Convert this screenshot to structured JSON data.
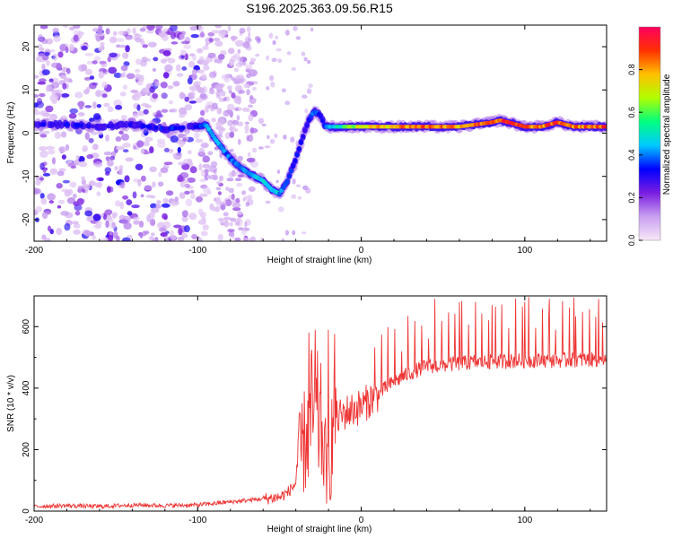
{
  "figure_title": "S196.2025.363.09.56.R15",
  "chart_data": [
    {
      "type": "heatmap",
      "title": "",
      "xlabel": "Height of straight line (km)",
      "ylabel": "Frequency (Hz)",
      "xlim": [
        -200,
        150
      ],
      "ylim": [
        -25,
        25
      ],
      "x_ticks": [
        -200,
        -100,
        0,
        100
      ],
      "y_ticks": [
        -20,
        -10,
        0,
        10,
        20
      ],
      "colorbar": {
        "label": "Normalized spectral amplitude",
        "range": [
          0.0,
          1.0
        ],
        "ticks": [
          0.0,
          0.2,
          0.4,
          0.6,
          0.8
        ],
        "tick_labels": [
          "0.0",
          "0.2",
          "0.4",
          "0.6",
          "0.8"
        ],
        "colormap": [
          "#f7e7f7",
          "#c9a0f0",
          "#7a1de0",
          "#0000ff",
          "#00c8ff",
          "#00ff80",
          "#b0ff00",
          "#ffc000",
          "#ff3000",
          "#ff0060"
        ]
      },
      "ridge_track": {
        "x": [
          -200,
          -180,
          -160,
          -140,
          -120,
          -100,
          -95,
          -90,
          -80,
          -70,
          -60,
          -55,
          -50,
          -45,
          -40,
          -35,
          -32,
          -30,
          -28,
          -25,
          -22,
          -20,
          0,
          20,
          40,
          60,
          70,
          80,
          85,
          90,
          100,
          110,
          120,
          130,
          140,
          150
        ],
        "y": [
          2,
          2,
          1.5,
          2,
          1,
          1.5,
          2,
          -1,
          -6,
          -9,
          -11,
          -13,
          -14,
          -11,
          -6,
          0,
          3,
          4.5,
          5,
          4,
          1.5,
          1.5,
          1.5,
          1.5,
          1.5,
          1.5,
          2,
          2.5,
          3,
          2.5,
          1.5,
          1.5,
          2.5,
          1.5,
          1.5,
          1.5
        ],
        "amplitude": [
          0.3,
          0.35,
          0.3,
          0.3,
          0.35,
          0.35,
          0.45,
          0.45,
          0.4,
          0.45,
          0.5,
          0.5,
          0.45,
          0.4,
          0.35,
          0.3,
          0.35,
          0.4,
          0.4,
          0.35,
          0.4,
          0.45,
          0.75,
          0.85,
          0.9,
          0.85,
          0.9,
          0.95,
          0.9,
          0.95,
          0.9,
          0.85,
          0.95,
          0.85,
          0.9,
          0.9
        ]
      },
      "noise_region_x": [
        -200,
        -100
      ]
    },
    {
      "type": "line",
      "title": "",
      "xlabel": "Height of straight line (km)",
      "ylabel": "SNR (10 * v/v)",
      "xlim": [
        -200,
        150
      ],
      "ylim": [
        0,
        700
      ],
      "x_ticks": [
        -200,
        -100,
        0,
        100
      ],
      "y_ticks": [
        0,
        200,
        400,
        600
      ],
      "series": [
        {
          "name": "SNR",
          "color": "#ee3333",
          "x": [
            -200,
            -180,
            -160,
            -140,
            -120,
            -100,
            -90,
            -80,
            -70,
            -60,
            -50,
            -45,
            -40,
            -35,
            -30,
            -25,
            -20,
            -15,
            -10,
            -5,
            0,
            5,
            10,
            20,
            30,
            40,
            50,
            60,
            70,
            80,
            90,
            100,
            110,
            120,
            130,
            140,
            150
          ],
          "y": [
            15,
            18,
            15,
            20,
            18,
            20,
            25,
            30,
            35,
            40,
            45,
            60,
            90,
            150,
            220,
            200,
            60,
            300,
            320,
            330,
            340,
            360,
            380,
            420,
            450,
            470,
            475,
            480,
            485,
            485,
            488,
            490,
            490,
            490,
            492,
            492,
            495
          ]
        }
      ],
      "spike_peaks": [
        {
          "x": -32,
          "y": 580
        },
        {
          "x": -28,
          "y": 590
        },
        {
          "x": -20,
          "y": 590
        },
        {
          "x": 45,
          "y": 690
        },
        {
          "x": 60,
          "y": 680
        },
        {
          "x": 80,
          "y": 670
        },
        {
          "x": 100,
          "y": 680
        },
        {
          "x": 115,
          "y": 690
        },
        {
          "x": 130,
          "y": 695
        },
        {
          "x": 145,
          "y": 690
        }
      ]
    }
  ]
}
